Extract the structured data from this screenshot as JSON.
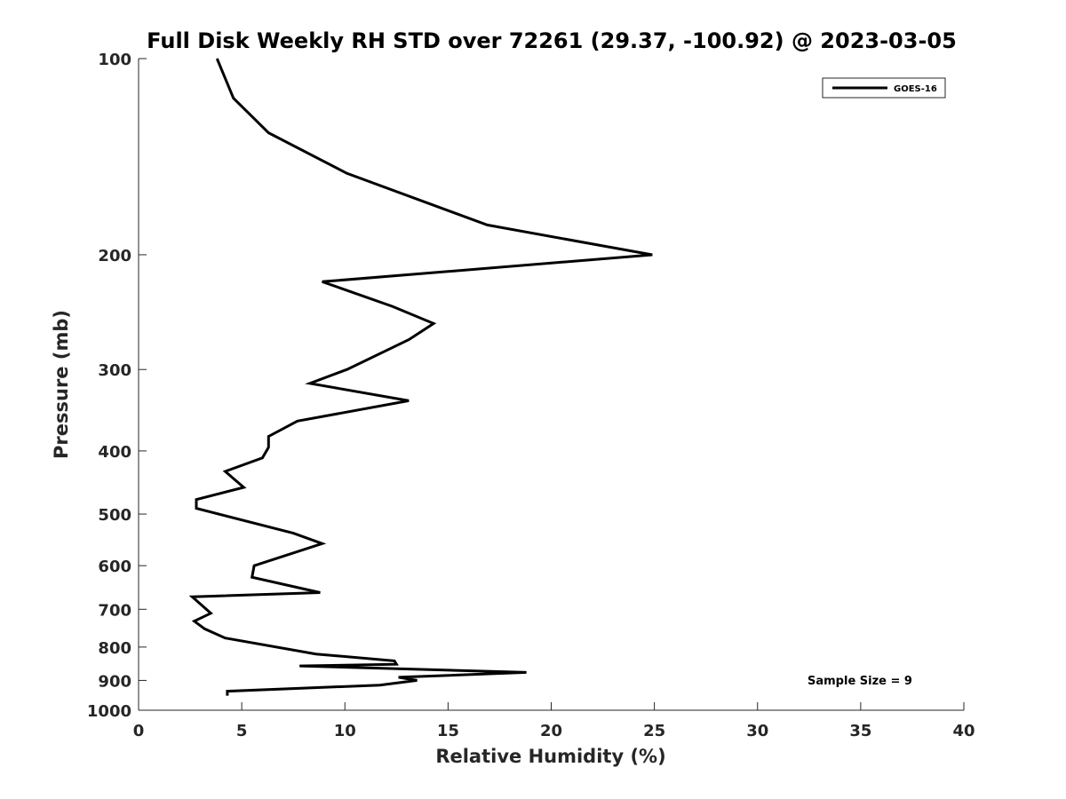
{
  "chart_data": {
    "type": "line",
    "title": "Full Disk Weekly RH STD over 72261 (29.37, -100.92) @ 2023-03-05",
    "xlabel": "Relative Humidity (%)",
    "ylabel": "Pressure (mb)",
    "xlim": [
      0,
      40
    ],
    "ylim": [
      1000,
      100
    ],
    "yscale": "log",
    "x_ticks": [
      0,
      5,
      10,
      15,
      20,
      25,
      30,
      35,
      40
    ],
    "x_tick_labels": [
      "0",
      "5",
      "10",
      "15",
      "20",
      "25",
      "30",
      "35",
      "40"
    ],
    "y_ticks": [
      100,
      200,
      300,
      400,
      500,
      600,
      700,
      800,
      900,
      1000
    ],
    "y_tick_labels": [
      "100",
      "200",
      "300",
      "400",
      "500",
      "600",
      "700",
      "800",
      "900",
      "1000"
    ],
    "grid": false,
    "legend": {
      "position": "top-right",
      "entries": [
        "GOES-16"
      ]
    },
    "annotation": "Sample Size = 9",
    "series": [
      {
        "name": "GOES-16",
        "color": "#000000",
        "x": [
          3.8,
          4.6,
          6.3,
          10.1,
          16.9,
          24.9,
          8.9,
          12.3,
          14.3,
          13.1,
          10.1,
          8.3,
          13.1,
          7.7,
          6.3,
          6.3,
          6.0,
          4.2,
          5.1,
          2.8,
          2.8,
          7.5,
          8.9,
          5.6,
          5.5,
          8.8,
          2.6,
          3.5,
          2.7,
          3.2,
          4.2,
          8.6,
          12.4,
          12.5,
          7.8,
          18.8,
          12.6,
          13.5,
          11.7,
          4.3,
          4.3
        ],
        "y": [
          100,
          115,
          130,
          150,
          180,
          200,
          220,
          240,
          255,
          270,
          300,
          315,
          335,
          360,
          380,
          395,
          410,
          430,
          455,
          475,
          490,
          535,
          555,
          600,
          625,
          660,
          670,
          710,
          730,
          750,
          775,
          820,
          840,
          850,
          855,
          875,
          890,
          900,
          915,
          935,
          950
        ]
      }
    ]
  }
}
